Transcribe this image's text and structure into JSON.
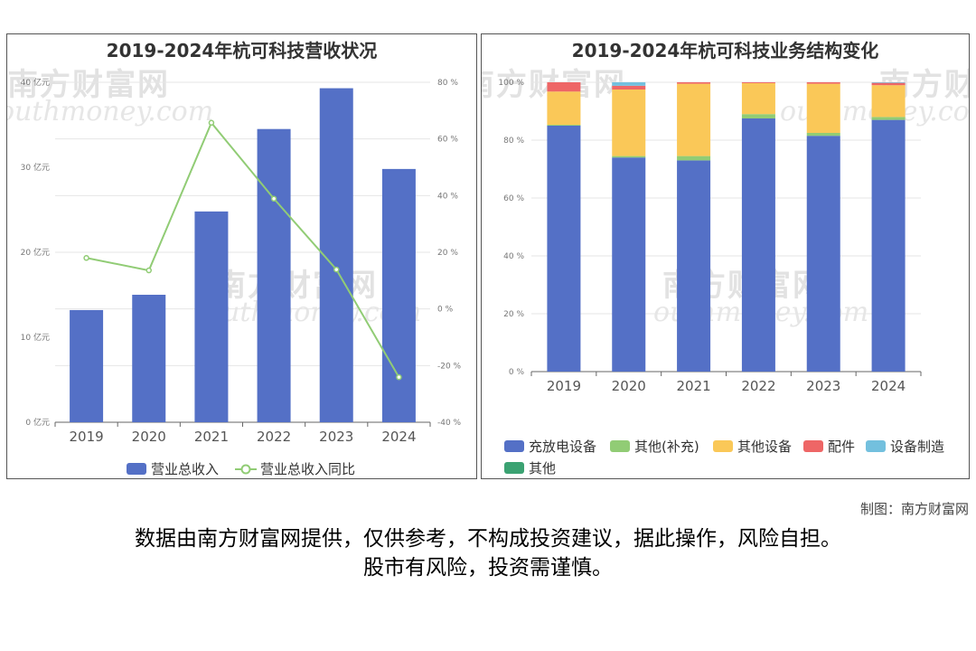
{
  "credit": "制图：南方财富网",
  "disclaimer": {
    "line1": "数据由南方财富网提供，仅供参考，不构成投资建议，据此操作，风险自担。",
    "line2": "股市有风险，投资需谨慎。"
  },
  "watermark": {
    "cn": "南方财富网",
    "en": "outhmoney.com"
  },
  "colors": {
    "bar_blue": "#5470c6",
    "line_green": "#91cc75",
    "yellow": "#fac858",
    "red": "#ee6666",
    "cyan": "#73c0de",
    "dark_green": "#3ba272"
  },
  "chart_data": [
    {
      "type": "bar",
      "title": "2019-2024年杭可科技营收状况",
      "categories": [
        "2019",
        "2020",
        "2021",
        "2022",
        "2023",
        "2024"
      ],
      "y_left": {
        "ticks": [
          "0 亿元",
          "10 亿元",
          "20 亿元",
          "30 亿元",
          "40 亿元"
        ],
        "ylim": [
          0,
          40
        ],
        "unit": "亿元"
      },
      "y_right": {
        "ticks": [
          "-40 %",
          "-20 %",
          "0 %",
          "20 %",
          "40 %",
          "60 %",
          "80 %"
        ],
        "ylim": [
          -40,
          80
        ],
        "unit": "%"
      },
      "series": [
        {
          "name": "营业总收入",
          "type": "bar",
          "values": [
            13.2,
            15.0,
            24.8,
            34.5,
            39.3,
            29.8
          ]
        },
        {
          "name": "营业总收入同比",
          "type": "line",
          "values": [
            18.0,
            13.6,
            65.7,
            38.9,
            13.9,
            -24.1
          ]
        }
      ],
      "legend_position": "bottom",
      "grid": true
    },
    {
      "type": "bar",
      "stacked": true,
      "title": "2019-2024年杭可科技业务结构变化",
      "categories": [
        "2019",
        "2020",
        "2021",
        "2022",
        "2023",
        "2024"
      ],
      "y": {
        "ticks": [
          "0 %",
          "20 %",
          "40 %",
          "60 %",
          "80 %",
          "100 %"
        ],
        "ylim": [
          0,
          100
        ],
        "unit": "%"
      },
      "series": [
        {
          "name": "充放电设备",
          "values": [
            85.0,
            74.0,
            73.0,
            87.5,
            81.5,
            87.0
          ]
        },
        {
          "name": "其他(补充)",
          "values": [
            0.3,
            0.5,
            1.5,
            1.5,
            1.0,
            1.0
          ]
        },
        {
          "name": "其他设备",
          "values": [
            11.5,
            23.0,
            25.0,
            10.7,
            17.0,
            11.0
          ]
        },
        {
          "name": "配件",
          "values": [
            3.2,
            1.3,
            0.5,
            0.3,
            0.5,
            0.8
          ]
        },
        {
          "name": "设备制造",
          "values": [
            0.0,
            1.2,
            0.0,
            0.0,
            0.0,
            0.2
          ]
        },
        {
          "name": "其他",
          "values": [
            0.0,
            0.0,
            0.0,
            0.0,
            0.0,
            0.0
          ]
        }
      ],
      "legend_position": "bottom",
      "grid": true
    }
  ]
}
